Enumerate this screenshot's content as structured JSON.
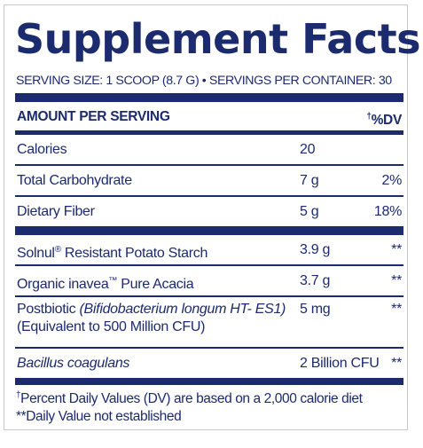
{
  "title": "Supplement Facts",
  "serving_line": "SERVING SIZE: 1 SCOOP (8.7 G) • SERVINGS PER CONTAINER: 30",
  "header": {
    "amount": "AMOUNT PER SERVING",
    "dv": "%DV",
    "dv_mark": "†"
  },
  "rows": [
    {
      "name": "Calories",
      "amount": "20",
      "dv": ""
    },
    {
      "name": "Total Carbohydrate",
      "amount": "7 g",
      "dv": "2%"
    },
    {
      "name": "Dietary Fiber",
      "amount": "5 g",
      "dv": "18%"
    }
  ],
  "ingredients": [
    {
      "name": "Solnul",
      "mark": "®",
      "rest": " Resistant Potato Starch",
      "amount": "3.9 g",
      "dv": "**"
    },
    {
      "name": "Organic inavea",
      "mark": "™",
      "rest": " Pure Acacia",
      "amount": "3.7 g",
      "dv": "**"
    },
    {
      "name": "Postbiotic ",
      "italic": "(Bifidobacterium longum HT- ES1)",
      "line2": "(Equivalent to 500 Million CFU)",
      "amount": "5 mg",
      "dv": "**"
    },
    {
      "name": "Bacillus coagulans",
      "amount": "2 Billion CFU",
      "dv": "**"
    }
  ],
  "footnotes": {
    "dagger": "†",
    "line1": "Percent Daily Values (DV) are based on a 2,000 calorie diet",
    "line2": "**Daily Value not established"
  },
  "colors": {
    "ink": "#1c2a6e",
    "border": "#c9c9c9"
  }
}
